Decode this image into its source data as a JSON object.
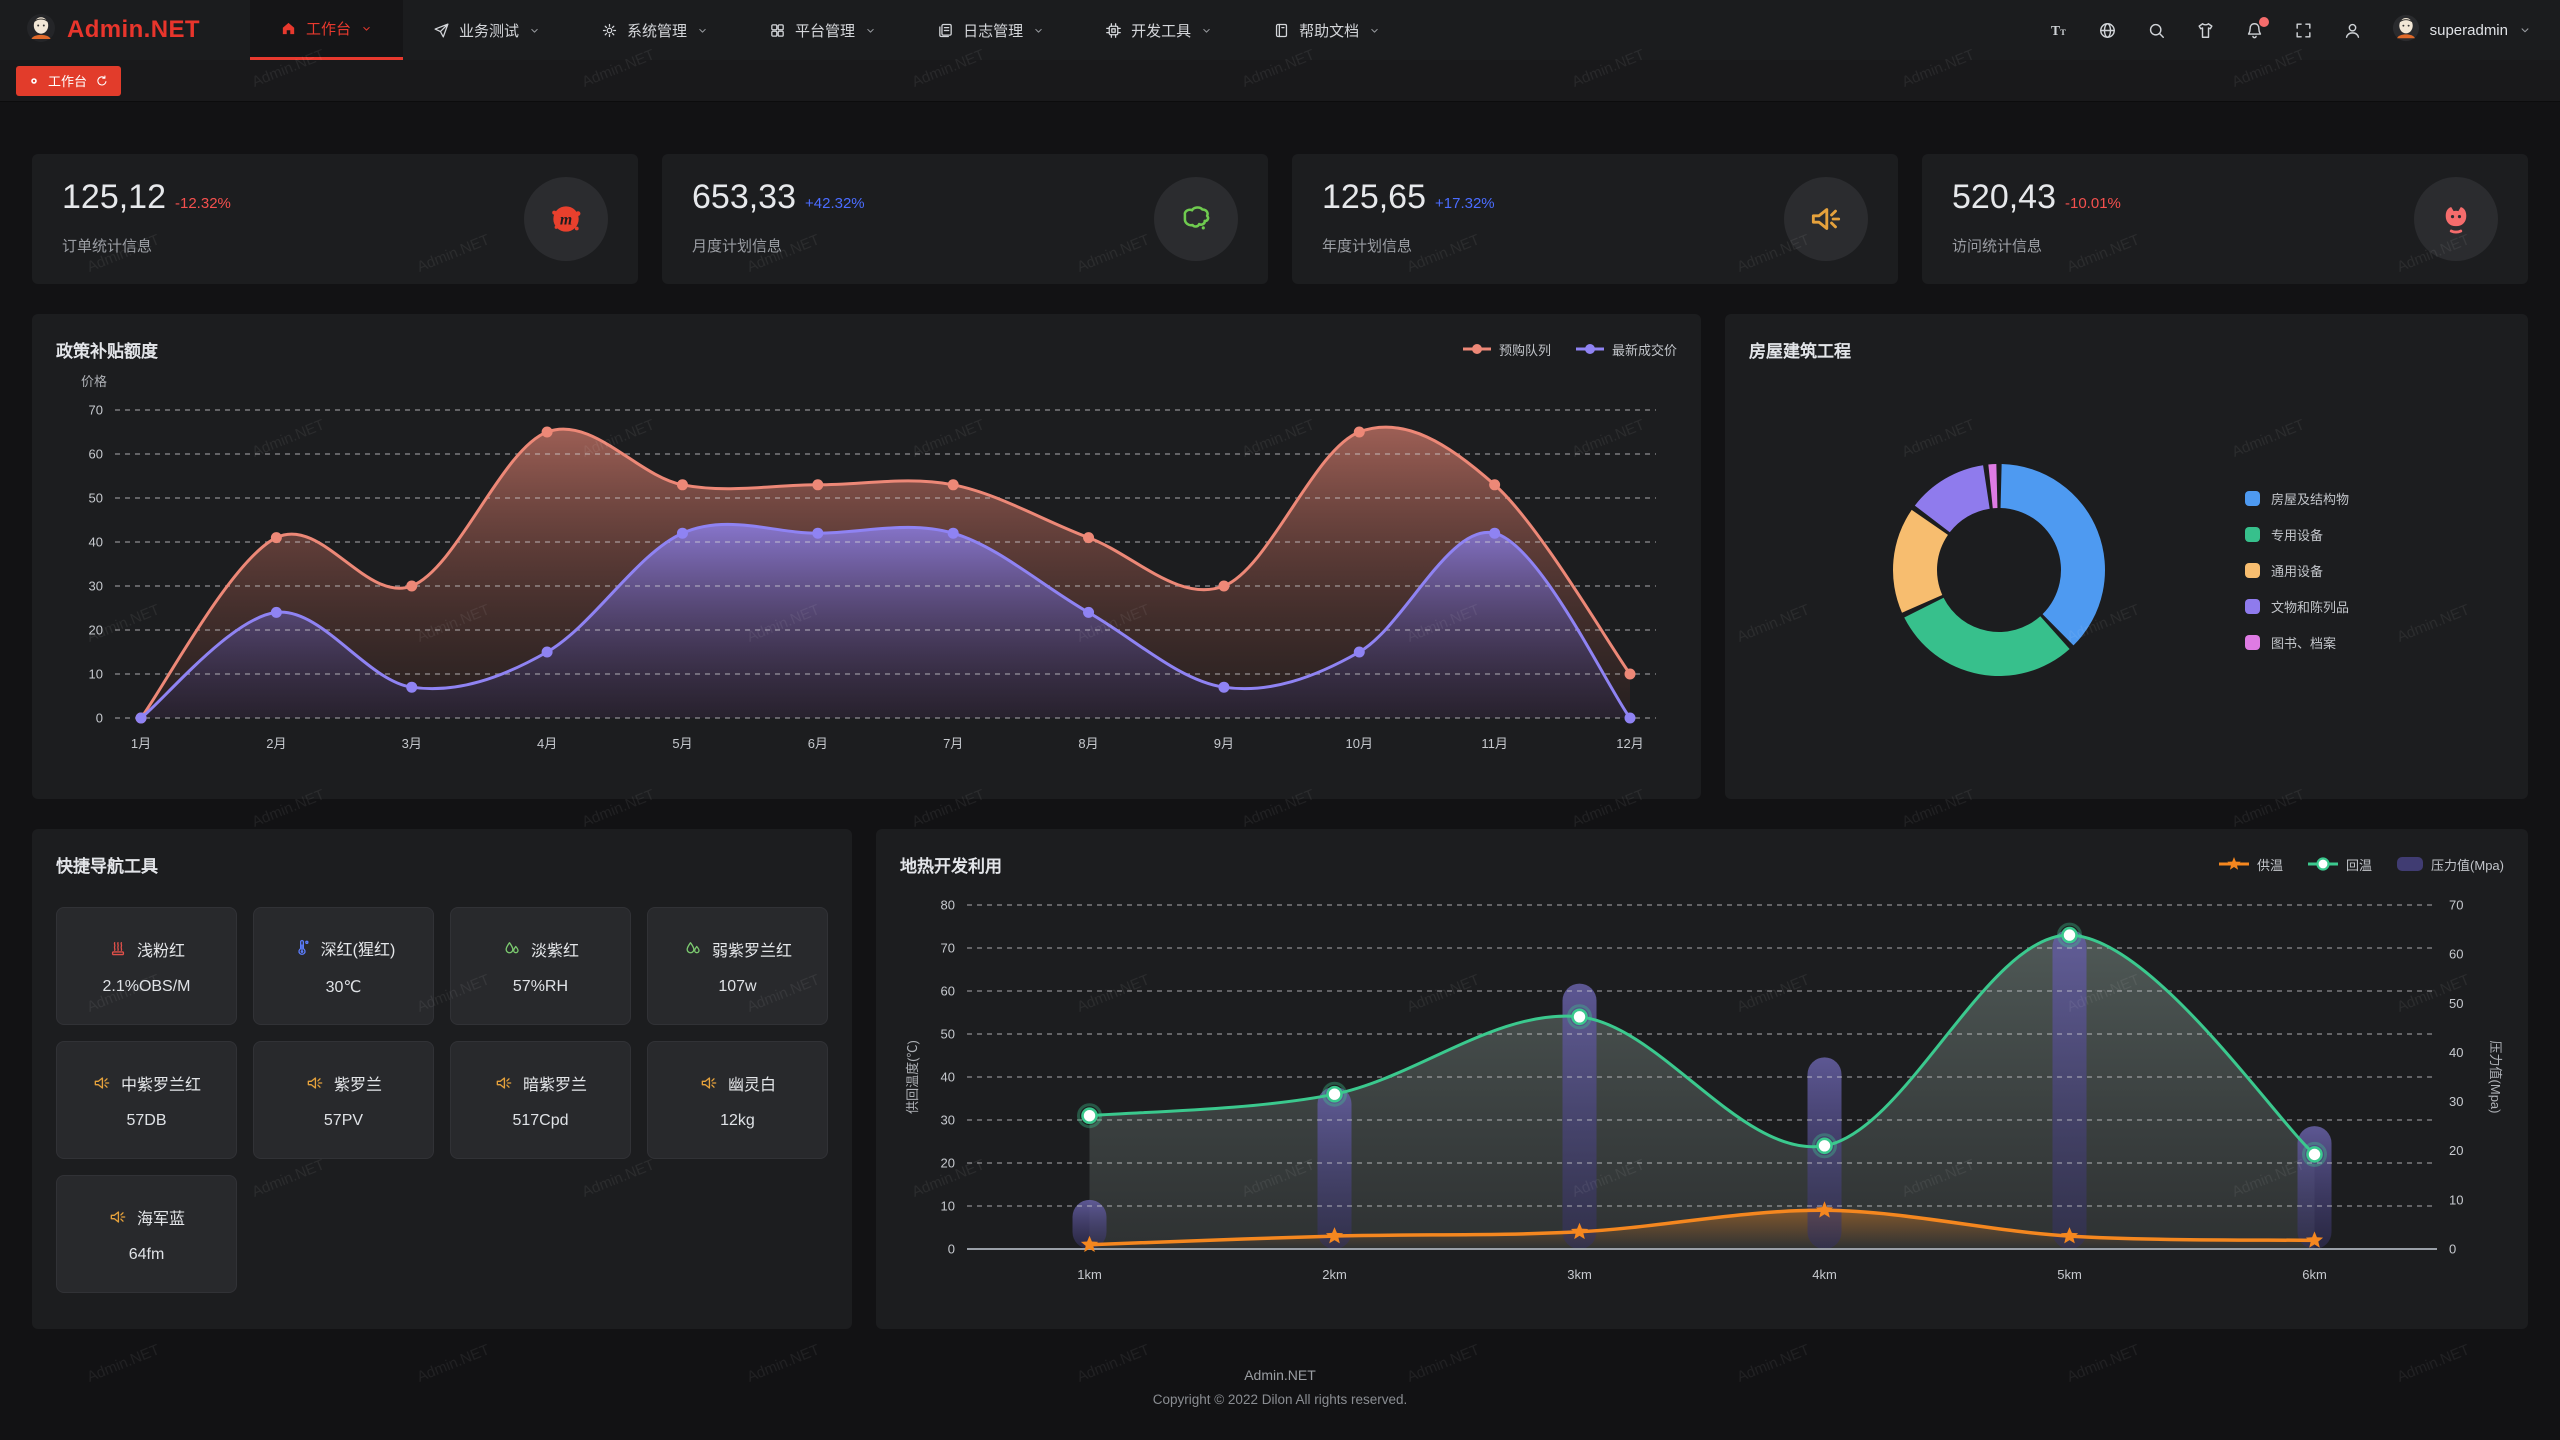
{
  "header": {
    "brand": "Admin.NET",
    "menu": [
      {
        "label": "工作台",
        "icon": "home-icon",
        "active": true
      },
      {
        "label": "业务测试",
        "icon": "send-icon",
        "active": false
      },
      {
        "label": "系统管理",
        "icon": "gear-icon",
        "active": false
      },
      {
        "label": "平台管理",
        "icon": "grid-icon",
        "active": false
      },
      {
        "label": "日志管理",
        "icon": "document-icon",
        "active": false
      },
      {
        "label": "开发工具",
        "icon": "chip-icon",
        "active": false
      },
      {
        "label": "帮助文档",
        "icon": "book-icon",
        "active": false
      }
    ],
    "actions": [
      {
        "name": "font-size-icon",
        "badge": false
      },
      {
        "name": "language-icon",
        "badge": false
      },
      {
        "name": "search-icon",
        "badge": false
      },
      {
        "name": "theme-icon",
        "badge": false
      },
      {
        "name": "notification-bell-icon",
        "badge": true
      },
      {
        "name": "fullscreen-icon",
        "badge": false
      },
      {
        "name": "user-icon",
        "badge": false
      }
    ],
    "user": "superadmin"
  },
  "tabbar": {
    "active_tab": "工作台"
  },
  "colors": {
    "accent": "#E8392E",
    "delta_up": "#4A6CFF",
    "delta_down": "#F4504E"
  },
  "stats": {
    "cards": [
      {
        "value": "125,12",
        "delta": "-12.32%",
        "trend": "down",
        "label": "订单统计信息",
        "icon": "splat-m-icon",
        "icon_color": "#E8402D"
      },
      {
        "value": "653,33",
        "delta": "+42.32%",
        "trend": "up",
        "label": "月度计划信息",
        "icon": "china-map-icon",
        "icon_color": "#6FCB4F"
      },
      {
        "value": "125,65",
        "delta": "+17.32%",
        "trend": "up",
        "label": "年度计划信息",
        "icon": "speaker-icon",
        "icon_color": "#E6A23C"
      },
      {
        "value": "520,43",
        "delta": "-10.01%",
        "trend": "down",
        "label": "访问统计信息",
        "icon": "cat-icon",
        "icon_color": "#F56C6C"
      }
    ]
  },
  "quicknav": {
    "title": "快捷导航工具",
    "items": [
      {
        "label": "浅粉红",
        "value": "2.1%OBS/M",
        "icon": "heat-icon",
        "icon_color": "#E0504A"
      },
      {
        "label": "深红(猩红)",
        "value": "30℃",
        "icon": "thermometer-icon",
        "icon_color": "#5B7CFA"
      },
      {
        "label": "淡紫红",
        "value": "57%RH",
        "icon": "humidity-icon",
        "icon_color": "#7BC96F"
      },
      {
        "label": "弱紫罗兰红",
        "value": "107w",
        "icon": "humidity-icon",
        "icon_color": "#7BC96F"
      },
      {
        "label": "中紫罗兰红",
        "value": "57DB",
        "icon": "speaker-icon",
        "icon_color": "#E6A23C"
      },
      {
        "label": "紫罗兰",
        "value": "57PV",
        "icon": "speaker-icon",
        "icon_color": "#E6A23C"
      },
      {
        "label": "暗紫罗兰",
        "value": "517Cpd",
        "icon": "speaker-icon",
        "icon_color": "#E6A23C"
      },
      {
        "label": "幽灵白",
        "value": "12kg",
        "icon": "speaker-icon",
        "icon_color": "#E6A23C"
      },
      {
        "label": "海军蓝",
        "value": "64fm",
        "icon": "speaker-icon",
        "icon_color": "#E6A23C"
      }
    ]
  },
  "chart_data": [
    {
      "type": "area",
      "title": "政策补贴额度",
      "ylabel": "价格",
      "categories": [
        "1月",
        "2月",
        "3月",
        "4月",
        "5月",
        "6月",
        "7月",
        "8月",
        "9月",
        "10月",
        "11月",
        "12月"
      ],
      "ylim": [
        0,
        70
      ],
      "grid": true,
      "legend_position": "top-right",
      "series": [
        {
          "name": "预购队列",
          "color": "#ED8877",
          "values": [
            0,
            41,
            30,
            65,
            53,
            53,
            53,
            41,
            30,
            65,
            53,
            10
          ]
        },
        {
          "name": "最新成交价",
          "color": "#8F83F3",
          "values": [
            0,
            24,
            7,
            15,
            42,
            42,
            42,
            24,
            7,
            15,
            42,
            0
          ]
        }
      ]
    },
    {
      "type": "pie",
      "title": "房屋建筑工程",
      "legend_position": "right",
      "slices": [
        {
          "label": "房屋及结构物",
          "value": 38,
          "color": "#4E9AF1"
        },
        {
          "label": "专用设备",
          "value": 30,
          "color": "#37C08C"
        },
        {
          "label": "通用设备",
          "value": 17,
          "color": "#F7BD6F"
        },
        {
          "label": "文物和陈列品",
          "value": 13,
          "color": "#8F7BED"
        },
        {
          "label": "图书、档案",
          "value": 2,
          "color": "#DE7BE3"
        }
      ]
    },
    {
      "type": "line-bar",
      "title": "地热开发利用",
      "categories": [
        "1km",
        "2km",
        "3km",
        "4km",
        "5km",
        "6km"
      ],
      "ylabel_left": "供回温度(℃)",
      "ylabel_right": "压力值(Mpa)",
      "ylim_left": [
        0,
        80
      ],
      "ylim_right": [
        0,
        70
      ],
      "grid": true,
      "legend_position": "top-right",
      "series": [
        {
          "name": "供温",
          "type": "line",
          "axis": "left",
          "marker": "star",
          "color": "#F5871F",
          "values": [
            1,
            3,
            4,
            9,
            3,
            2
          ]
        },
        {
          "name": "回温",
          "type": "line",
          "axis": "left",
          "marker": "circle",
          "color": "#3BC98E",
          "values": [
            31,
            36,
            54,
            24,
            73,
            22
          ]
        },
        {
          "name": "压力值(Mpa)",
          "type": "bar",
          "axis": "right",
          "color": "#45407A",
          "values": [
            10,
            33,
            54,
            39,
            65,
            25
          ]
        }
      ]
    }
  ],
  "watermark": "Admin.NET",
  "footer": {
    "line1": "Admin.NET",
    "line2": "Copyright © 2022 Dilon All rights reserved."
  }
}
